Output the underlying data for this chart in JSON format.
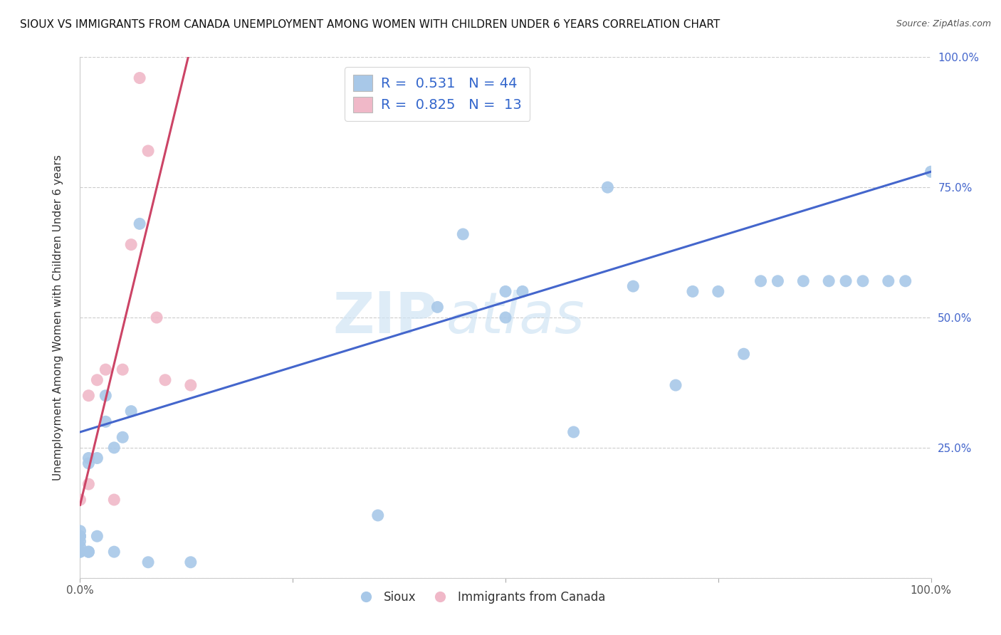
{
  "title": "SIOUX VS IMMIGRANTS FROM CANADA UNEMPLOYMENT AMONG WOMEN WITH CHILDREN UNDER 6 YEARS CORRELATION CHART",
  "source": "Source: ZipAtlas.com",
  "ylabel": "Unemployment Among Women with Children Under 6 years",
  "xlim": [
    0,
    1
  ],
  "ylim": [
    0,
    1
  ],
  "xticklabels": [
    "0.0%",
    "",
    "",
    "",
    "100.0%"
  ],
  "yticklabels_right": [
    "",
    "25.0%",
    "50.0%",
    "75.0%",
    "100.0%"
  ],
  "sioux_R": 0.531,
  "sioux_N": 44,
  "canada_R": 0.825,
  "canada_N": 13,
  "sioux_color": "#a8c8e8",
  "canada_color": "#f0b8c8",
  "sioux_line_color": "#4466cc",
  "canada_line_color": "#cc4466",
  "watermark_text": "ZIPatlas",
  "sioux_x": [
    0.0,
    0.0,
    0.0,
    0.0,
    0.0,
    0.0,
    0.0,
    0.01,
    0.01,
    0.01,
    0.01,
    0.02,
    0.02,
    0.03,
    0.03,
    0.04,
    0.04,
    0.05,
    0.06,
    0.07,
    0.08,
    0.13,
    0.35,
    0.42,
    0.45,
    0.5,
    0.5,
    0.52,
    0.58,
    0.62,
    0.65,
    0.7,
    0.72,
    0.75,
    0.78,
    0.8,
    0.82,
    0.85,
    0.88,
    0.9,
    0.92,
    0.95,
    0.97,
    1.0
  ],
  "sioux_y": [
    0.05,
    0.05,
    0.06,
    0.07,
    0.08,
    0.08,
    0.09,
    0.05,
    0.05,
    0.22,
    0.23,
    0.08,
    0.23,
    0.3,
    0.35,
    0.25,
    0.05,
    0.27,
    0.32,
    0.68,
    0.03,
    0.03,
    0.12,
    0.52,
    0.66,
    0.55,
    0.5,
    0.55,
    0.28,
    0.75,
    0.56,
    0.37,
    0.55,
    0.55,
    0.43,
    0.57,
    0.57,
    0.57,
    0.57,
    0.57,
    0.57,
    0.57,
    0.57,
    0.78
  ],
  "canada_x": [
    0.0,
    0.01,
    0.01,
    0.02,
    0.03,
    0.04,
    0.05,
    0.06,
    0.07,
    0.08,
    0.09,
    0.1,
    0.13
  ],
  "canada_y": [
    0.15,
    0.18,
    0.35,
    0.38,
    0.4,
    0.15,
    0.4,
    0.64,
    0.96,
    0.82,
    0.5,
    0.38,
    0.37
  ],
  "sioux_trend_x": [
    0.0,
    1.0
  ],
  "sioux_trend_y": [
    0.28,
    0.78
  ],
  "canada_trend_x": [
    0.0,
    0.13
  ],
  "canada_trend_y": [
    0.14,
    1.02
  ]
}
